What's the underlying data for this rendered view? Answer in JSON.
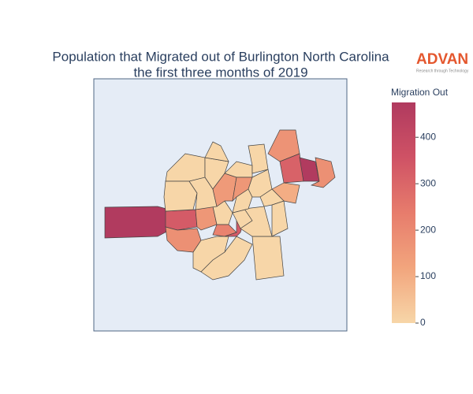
{
  "chart_data": {
    "type": "choropleth",
    "title": [
      "Population that Migrated out of Burlington North Carolina",
      "the first three months of 2019"
    ],
    "logo": {
      "name": "ADVAN",
      "tagline": "Research through Technology"
    },
    "colorbar": {
      "title": "Migration Out",
      "ticks": [
        0,
        100,
        200,
        300,
        400
      ]
    },
    "zlim": [
      0,
      475
    ],
    "colorscale": [
      [
        0,
        "#f7d6a8"
      ],
      [
        0.25,
        "#f2a57d"
      ],
      [
        0.5,
        "#e77c6c"
      ],
      [
        0.75,
        "#cf5265"
      ],
      [
        1,
        "#b03a5f"
      ]
    ],
    "values": [
      470,
      330,
      180,
      0,
      0,
      160,
      0,
      220,
      330,
      0,
      0,
      0,
      0,
      0,
      0,
      0,
      0,
      0,
      150,
      0,
      160,
      0,
      0,
      0,
      170,
      310,
      470,
      180,
      100,
      0
    ]
  }
}
